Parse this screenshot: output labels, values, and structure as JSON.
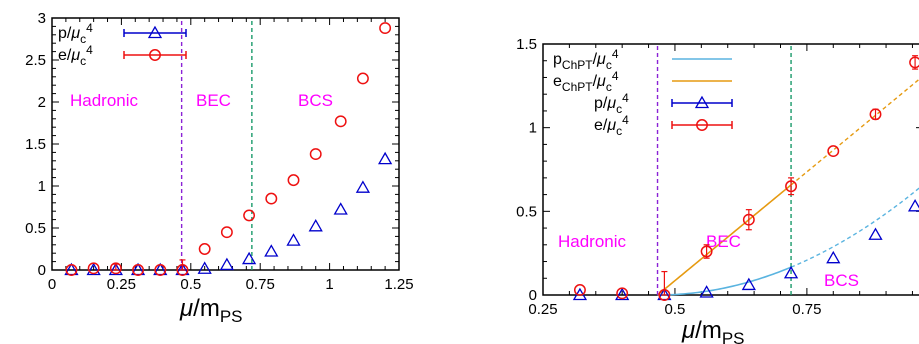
{
  "colors": {
    "p": "#0000cc",
    "e": "#ee1111",
    "p_chpt": "#5ab4e0",
    "e_chpt": "#e69a10",
    "hadronic_line": "#8b22d6",
    "bec_line": "#1a9a6a",
    "region_text": "#ff00ff"
  },
  "chart_data": [
    {
      "type": "scatter",
      "xlabel": "μ/m_PS",
      "ylabel": "",
      "xlim": [
        0,
        1.25
      ],
      "ylim": [
        0,
        3
      ],
      "x_ticks": [
        "0",
        "0.25",
        "0.5",
        "0.75",
        "1",
        "1.25"
      ],
      "y_ticks": [
        "0",
        "0.5",
        "1",
        "1.5",
        "2",
        "2.5",
        "3"
      ],
      "grid": false,
      "legend_position": "top-left",
      "regions": [
        "Hadronic",
        "BEC",
        "BCS"
      ],
      "vlines": [
        0.467,
        0.72
      ],
      "series": [
        {
          "name": "p/μ_c^4",
          "marker": "triangle",
          "color": "#0000cc",
          "points": [
            [
              0.07,
              0.0
            ],
            [
              0.15,
              0.0
            ],
            [
              0.23,
              0.0
            ],
            [
              0.31,
              0.0
            ],
            [
              0.39,
              0.0
            ],
            [
              0.47,
              0.0
            ],
            [
              0.55,
              0.015
            ],
            [
              0.63,
              0.06
            ],
            [
              0.71,
              0.13
            ],
            [
              0.79,
              0.22
            ],
            [
              0.87,
              0.35
            ],
            [
              0.95,
              0.52
            ],
            [
              1.04,
              0.72
            ],
            [
              1.12,
              0.98
            ],
            [
              1.2,
              1.32
            ]
          ],
          "errors": [
            0,
            0,
            0,
            0,
            0,
            0.05,
            0,
            0,
            0,
            0,
            0,
            0,
            0,
            0,
            0
          ]
        },
        {
          "name": "e/μ_c^4",
          "marker": "circle",
          "color": "#ee1111",
          "points": [
            [
              0.07,
              0.0
            ],
            [
              0.15,
              0.02
            ],
            [
              0.23,
              0.02
            ],
            [
              0.31,
              0.0
            ],
            [
              0.39,
              0.0
            ],
            [
              0.47,
              0.0
            ],
            [
              0.55,
              0.25
            ],
            [
              0.63,
              0.45
            ],
            [
              0.71,
              0.65
            ],
            [
              0.79,
              0.85
            ],
            [
              0.87,
              1.07
            ],
            [
              0.95,
              1.38
            ],
            [
              1.04,
              1.77
            ],
            [
              1.12,
              2.28
            ],
            [
              1.2,
              2.88
            ]
          ],
          "errors": [
            0,
            0,
            0.05,
            0,
            0,
            0.12,
            0,
            0,
            0,
            0,
            0,
            0,
            0,
            0,
            0
          ]
        }
      ]
    },
    {
      "type": "scatter",
      "xlabel": "μ/m_PS",
      "ylabel": "",
      "xlim": [
        0.25,
        0.97
      ],
      "ylim": [
        0,
        1.5
      ],
      "x_ticks": [
        "0.25",
        "0.5",
        "0.75"
      ],
      "y_ticks": [
        "0",
        "0.5",
        "1",
        "1.5"
      ],
      "grid": false,
      "legend_position": "top-left",
      "regions": [
        "Hadronic",
        "BEC",
        "BCS"
      ],
      "vlines": [
        0.467,
        0.72
      ],
      "series": [
        {
          "name": "p_ChPT/μ_c^4",
          "marker": "line",
          "color": "#5ab4e0",
          "solid_x": [
            0.467,
            0.72
          ],
          "dashed_x": [
            0.72,
            0.97
          ]
        },
        {
          "name": "e_ChPT/μ_c^4",
          "marker": "line",
          "color": "#e69a10",
          "solid_x": [
            0.467,
            0.72
          ],
          "dashed_x": [
            0.72,
            0.97
          ]
        },
        {
          "name": "p/μ_c^4",
          "marker": "triangle",
          "color": "#0000cc",
          "points": [
            [
              0.32,
              0.0
            ],
            [
              0.4,
              0.0
            ],
            [
              0.48,
              0.0
            ],
            [
              0.56,
              0.015
            ],
            [
              0.64,
              0.06
            ],
            [
              0.72,
              0.13
            ],
            [
              0.8,
              0.22
            ],
            [
              0.88,
              0.36
            ],
            [
              0.955,
              0.53
            ]
          ],
          "errors": [
            0,
            0,
            0,
            0,
            0,
            0,
            0,
            0,
            0
          ]
        },
        {
          "name": "e/μ_c^4",
          "marker": "circle",
          "color": "#ee1111",
          "points": [
            [
              0.32,
              0.03
            ],
            [
              0.4,
              0.01
            ],
            [
              0.48,
              0.0
            ],
            [
              0.56,
              0.26
            ],
            [
              0.64,
              0.45
            ],
            [
              0.72,
              0.65
            ],
            [
              0.8,
              0.86
            ],
            [
              0.88,
              1.08
            ],
            [
              0.955,
              1.39
            ]
          ],
          "errors": [
            0,
            0,
            0.14,
            0.04,
            0.06,
            0.05,
            0,
            0.03,
            0.04
          ]
        }
      ]
    }
  ]
}
